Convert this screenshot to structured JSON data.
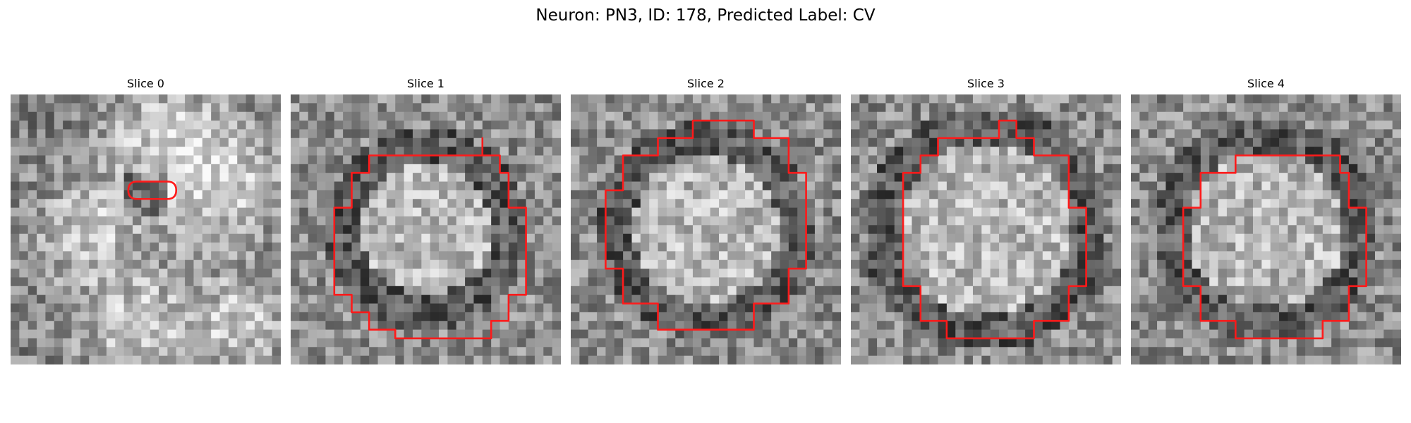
{
  "figure": {
    "title": "Neuron: PN3, ID: 178, Predicted Label: CV"
  },
  "colors": {
    "outline": "#ff1a1a",
    "background": "#ffffff"
  },
  "panels": [
    {
      "title": "Slice 0"
    },
    {
      "title": "Slice 1"
    },
    {
      "title": "Slice 2"
    },
    {
      "title": "Slice 3"
    },
    {
      "title": "Slice 4"
    }
  ]
}
